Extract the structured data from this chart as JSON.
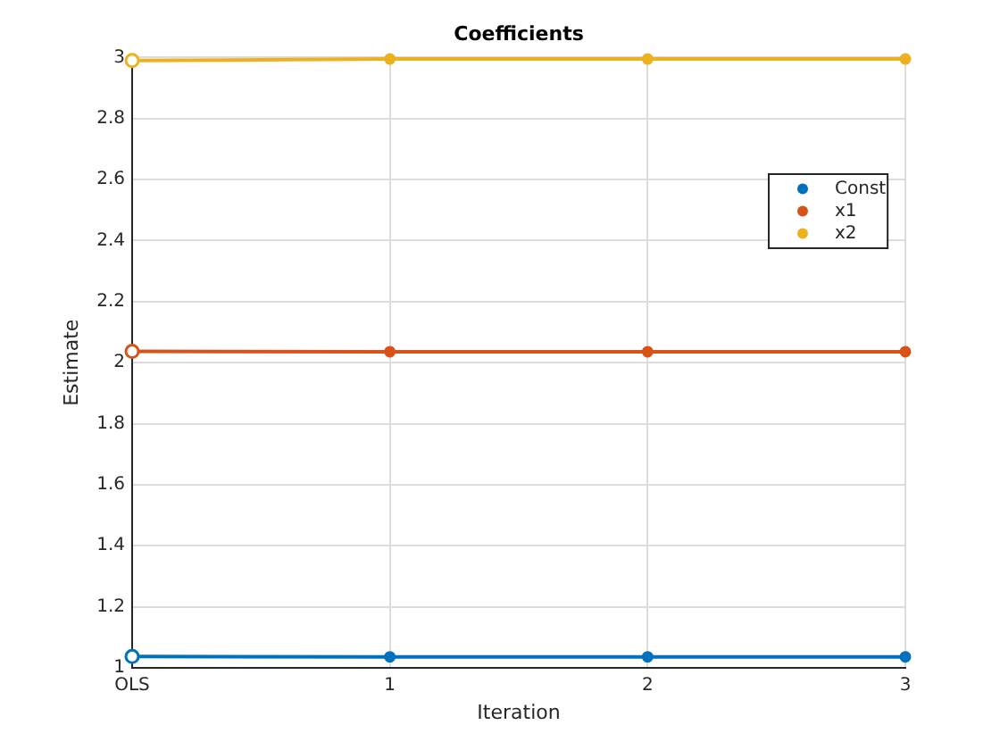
{
  "chart_data": {
    "type": "line",
    "title": "Coefficients",
    "xlabel": "Iteration",
    "ylabel": "Estimate",
    "categories": [
      "OLS",
      "1",
      "2",
      "3"
    ],
    "series": [
      {
        "name": "Const",
        "color": "#0072bd",
        "values": [
          1.037,
          1.036,
          1.036,
          1.036
        ]
      },
      {
        "name": "x1",
        "color": "#d95319",
        "values": [
          2.037,
          2.036,
          2.036,
          2.036
        ]
      },
      {
        "name": "x2",
        "color": "#edb120",
        "values": [
          2.99,
          2.995,
          2.995,
          2.995
        ]
      }
    ],
    "ylim": [
      1,
      3
    ],
    "yticks": [
      1,
      1.2,
      1.4,
      1.6,
      1.8,
      2,
      2.2,
      2.4,
      2.6,
      2.8,
      3
    ],
    "grid": true,
    "legend": "top right",
    "marker": "circle",
    "line_style": "solid"
  }
}
